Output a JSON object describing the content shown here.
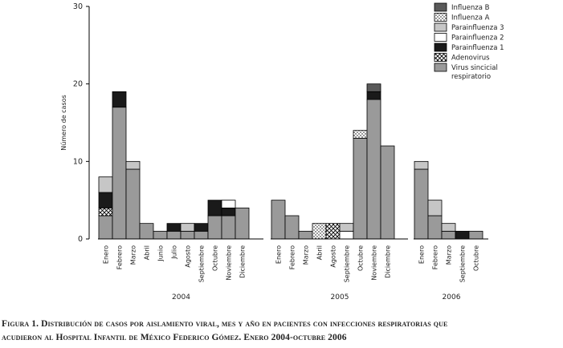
{
  "chart_data": {
    "type": "stacked-bar",
    "ylabel": "Número de casos",
    "ylim": [
      0,
      30
    ],
    "yticks": [
      "0",
      "10",
      "20",
      "30"
    ],
    "groups": [
      {
        "year": "2004",
        "months": [
          "Enero",
          "Febrero",
          "Marzo",
          "Abril",
          "Junio",
          "Julio",
          "Agosto",
          "Septiembre",
          "Octubre",
          "Noviembre",
          "Diciembre"
        ]
      },
      {
        "year": "2005",
        "months": [
          "Enero",
          "Febrero",
          "Marzo",
          "Abril",
          "Agosto",
          "Septiembre",
          "Octubre",
          "Noviembre",
          "Diciembre"
        ]
      },
      {
        "year": "2006",
        "months": [
          "Enero",
          "Febrero",
          "Marzo",
          "Septiembre",
          "Octubre"
        ]
      }
    ],
    "series": [
      {
        "key": "vsr",
        "name": "Virus sincicial respiratorio",
        "color": "#9a9a9a",
        "pattern": "solid",
        "values": [
          3,
          17,
          9,
          2,
          1,
          1,
          1,
          1,
          3,
          3,
          4,
          5,
          3,
          1,
          0,
          0,
          0,
          13,
          18,
          12,
          9,
          3,
          1,
          0,
          1
        ]
      },
      {
        "key": "adeno",
        "name": "Adenovirus",
        "color": "#ffffff",
        "pattern": "cross",
        "values": [
          1,
          0,
          0,
          0,
          0,
          0,
          0,
          0,
          0,
          0,
          0,
          0,
          0,
          0,
          0,
          2,
          0,
          0,
          0,
          0,
          0,
          0,
          0,
          0,
          0
        ]
      },
      {
        "key": "para1",
        "name": "Parainfluenza 1",
        "color": "#1a1a1a",
        "pattern": "solid",
        "values": [
          2,
          2,
          0,
          0,
          0,
          1,
          0,
          1,
          2,
          1,
          0,
          0,
          0,
          0,
          0,
          0,
          0,
          0,
          1,
          0,
          0,
          0,
          0,
          1,
          0
        ]
      },
      {
        "key": "para2",
        "name": "Parainfluenza 2",
        "color": "#ffffff",
        "pattern": "solid",
        "values": [
          0,
          0,
          0,
          0,
          0,
          0,
          0,
          0,
          0,
          1,
          0,
          0,
          0,
          0,
          0,
          0,
          1,
          0,
          0,
          0,
          0,
          0,
          0,
          0,
          0
        ]
      },
      {
        "key": "para3",
        "name": "Parainfluenza 3",
        "color": "#c6c6c6",
        "pattern": "solid",
        "values": [
          2,
          0,
          1,
          0,
          0,
          0,
          1,
          0,
          0,
          0,
          0,
          0,
          0,
          0,
          0,
          0,
          1,
          0,
          0,
          0,
          1,
          2,
          1,
          0,
          0
        ]
      },
      {
        "key": "fluA",
        "name": "Influenza A",
        "color": "#ffffff",
        "pattern": "dots",
        "values": [
          0,
          0,
          0,
          0,
          0,
          0,
          0,
          0,
          0,
          0,
          0,
          0,
          0,
          0,
          2,
          0,
          0,
          1,
          0,
          0,
          0,
          0,
          0,
          0,
          0
        ]
      },
      {
        "key": "fluB",
        "name": "Influenza B",
        "color": "#5a5a5a",
        "pattern": "solid",
        "values": [
          0,
          0,
          0,
          0,
          0,
          0,
          0,
          0,
          0,
          0,
          0,
          0,
          0,
          0,
          0,
          0,
          0,
          0,
          1,
          0,
          0,
          0,
          0,
          0,
          0
        ]
      }
    ],
    "legend_order": [
      "fluB",
      "fluA",
      "para3",
      "para2",
      "para1",
      "adeno",
      "vsr"
    ],
    "legend_position": "top-right"
  },
  "caption": {
    "line1": "Figura 1. Distribución de casos por aislamiento viral, mes y año en pacientes con infecciones respiratorias que",
    "line2": "acudieron al Hospital Infantil de México Federico Gómez. Enero 2004-octubre 2006"
  }
}
